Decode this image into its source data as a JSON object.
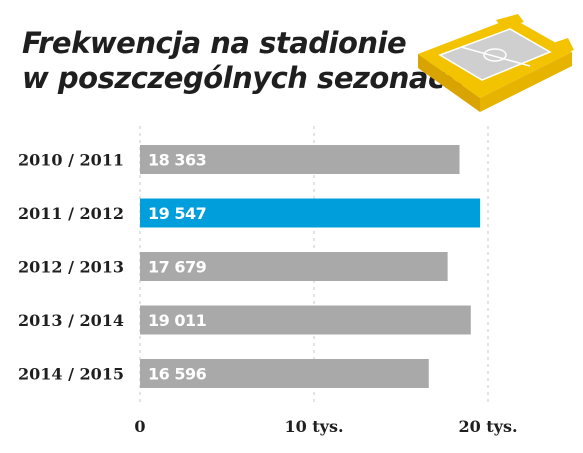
{
  "title": {
    "line1": "Frekwencja na stadionie",
    "line2": "w poszczególnych sezonach:"
  },
  "icon": "stadium-icon",
  "colors": {
    "bar": "#a9a9a9",
    "highlight": "#009fdb",
    "grid": "#c9c9c9",
    "stadium_yellow": "#f3c300",
    "stadium_field": "#cfcfcf"
  },
  "chart_data": {
    "type": "bar",
    "orientation": "horizontal",
    "categories": [
      "2010 / 2011",
      "2011 / 2012",
      "2012 / 2013",
      "2013 / 2014",
      "2014 / 2015"
    ],
    "values": [
      18363,
      19547,
      17679,
      19011,
      16596
    ],
    "value_labels": [
      "18 363",
      "19 547",
      "17 679",
      "19 011",
      "16 596"
    ],
    "highlight_index": 1,
    "xlim": [
      0,
      20000
    ],
    "xticks": [
      0,
      10000,
      20000
    ],
    "xtick_labels": [
      "0",
      "10 tys.",
      "20 tys."
    ],
    "grid": "vertical dashed"
  }
}
